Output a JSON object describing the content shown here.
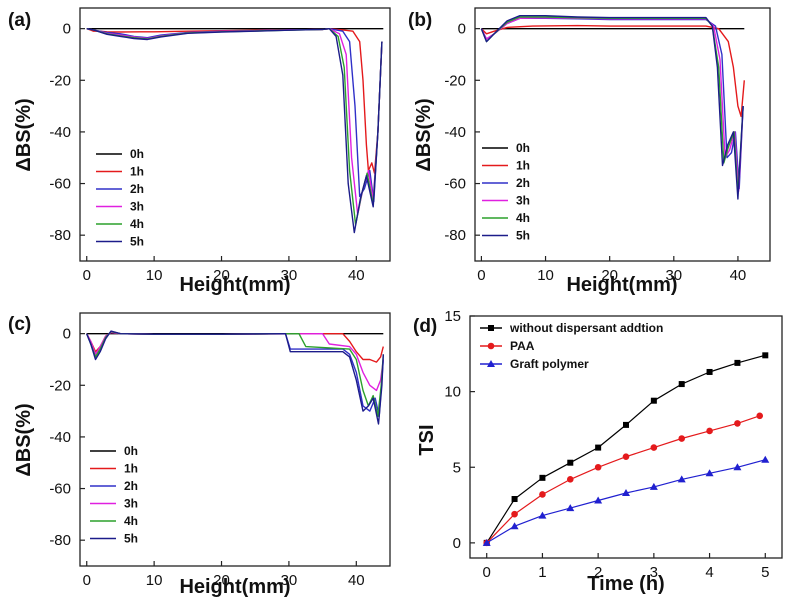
{
  "chart_data": [
    {
      "type": "line",
      "panel_label": "(a)",
      "xlabel": "Height(mm)",
      "ylabel": "ΔBS(%)",
      "xlim": [
        -1,
        45
      ],
      "ylim": [
        -90,
        8
      ],
      "xticks": [
        0,
        10,
        20,
        30,
        40
      ],
      "yticks": [
        0,
        -20,
        -40,
        -60,
        -80
      ],
      "legend_position": "lower-left",
      "series": [
        {
          "name": "0h",
          "color": "#000000",
          "x": [
            0,
            44
          ],
          "y": [
            0,
            0
          ]
        },
        {
          "name": "1h",
          "color": "#e41a1c",
          "x": [
            0,
            0.5,
            1,
            2,
            3,
            5,
            8,
            10,
            15,
            20,
            25,
            30,
            35,
            36,
            38,
            39.5,
            40.5,
            41,
            41.5,
            41.8,
            42.3,
            42.7,
            43.2,
            43.8
          ],
          "y": [
            0,
            -0.5,
            -1,
            -1,
            -1.2,
            -1.3,
            -1.2,
            -1.2,
            -1,
            -0.8,
            -0.6,
            -0.5,
            -0.3,
            0,
            -0.5,
            -1,
            -5,
            -20,
            -45,
            -55,
            -52,
            -56,
            -40,
            -5
          ]
        },
        {
          "name": "2h",
          "color": "#3030c8",
          "x": [
            0,
            1,
            3,
            5,
            7,
            9,
            11,
            15,
            20,
            25,
            30,
            35,
            36,
            38,
            39,
            39.8,
            40.5,
            41.2,
            42,
            42.6,
            43.2,
            43.8
          ],
          "y": [
            0,
            -0.5,
            -1.5,
            -2,
            -3,
            -3.5,
            -2.5,
            -1.5,
            -1,
            -0.8,
            -0.5,
            -0.3,
            0,
            -1,
            -5,
            -30,
            -65,
            -62,
            -55,
            -67,
            -40,
            -5
          ]
        },
        {
          "name": "3h",
          "color": "#e020e0",
          "x": [
            0,
            1,
            3,
            5,
            7,
            9,
            11,
            15,
            20,
            25,
            30,
            35,
            36,
            37.5,
            38.5,
            39.3,
            40.2,
            41,
            41.8,
            42.5,
            43.2,
            43.8
          ],
          "y": [
            0,
            -0.5,
            -1.8,
            -2.5,
            -3.2,
            -3.8,
            -2.8,
            -1.6,
            -1.1,
            -0.8,
            -0.5,
            -0.3,
            0,
            -2,
            -10,
            -50,
            -72,
            -62,
            -55,
            -66,
            -40,
            -5
          ]
        },
        {
          "name": "4h",
          "color": "#2ca02c",
          "x": [
            0,
            1,
            3,
            5,
            7,
            9,
            11,
            15,
            20,
            25,
            30,
            35,
            36,
            37.3,
            38.2,
            39,
            39.9,
            40.8,
            41.6,
            42.5,
            43.2,
            43.8
          ],
          "y": [
            0,
            -0.5,
            -2,
            -2.8,
            -3.5,
            -4,
            -3,
            -1.7,
            -1.2,
            -0.9,
            -0.6,
            -0.3,
            0,
            -3,
            -15,
            -55,
            -76,
            -64,
            -56,
            -68,
            -40,
            -5
          ]
        },
        {
          "name": "5h",
          "color": "#1c1c8a",
          "x": [
            0,
            1,
            3,
            5,
            7,
            9,
            11,
            15,
            20,
            25,
            30,
            35,
            36,
            37,
            38,
            38.8,
            39.7,
            40.6,
            41.5,
            42.5,
            43.2,
            43.8
          ],
          "y": [
            0,
            -0.5,
            -2.2,
            -3,
            -3.8,
            -4.2,
            -3.2,
            -1.8,
            -1.3,
            -1,
            -0.6,
            -0.3,
            0,
            -3,
            -18,
            -60,
            -79,
            -66,
            -57,
            -69,
            -40,
            -5
          ]
        }
      ]
    },
    {
      "type": "line",
      "panel_label": "(b)",
      "xlabel": "Height(mm)",
      "ylabel": "ΔBS(%)",
      "xlim": [
        -1,
        45
      ],
      "ylim": [
        -90,
        8
      ],
      "xticks": [
        0,
        10,
        20,
        30,
        40
      ],
      "yticks": [
        0,
        -20,
        -40,
        -60,
        -80
      ],
      "legend_position": "lower-left",
      "series": [
        {
          "name": "0h",
          "color": "#000000",
          "x": [
            0,
            41
          ],
          "y": [
            0,
            0
          ]
        },
        {
          "name": "1h",
          "color": "#e41a1c",
          "x": [
            0,
            0.8,
            2,
            4,
            8,
            15,
            20,
            25,
            30,
            35,
            37,
            38.5,
            39.3,
            40,
            40.5,
            41
          ],
          "y": [
            0,
            -2,
            -1,
            0.5,
            1,
            1.2,
            1,
            1,
            1,
            1,
            0,
            -5,
            -15,
            -30,
            -34,
            -20
          ]
        },
        {
          "name": "2h",
          "color": "#3030c8",
          "x": [
            0,
            0.8,
            2,
            4,
            6,
            10,
            15,
            20,
            25,
            30,
            35,
            36.5,
            37.5,
            38.3,
            39,
            39.6,
            40.2,
            40.8
          ],
          "y": [
            0,
            -4,
            -2,
            2,
            4,
            4,
            3.8,
            3.5,
            3.5,
            3.5,
            3.5,
            1,
            -10,
            -50,
            -48,
            -40,
            -62,
            -30
          ]
        },
        {
          "name": "3h",
          "color": "#e020e0",
          "x": [
            0,
            0.8,
            2,
            4,
            6,
            10,
            15,
            20,
            25,
            30,
            35,
            36.2,
            37.2,
            38,
            38.7,
            39.5,
            40.1,
            40.8
          ],
          "y": [
            0,
            -4,
            -2,
            2,
            4,
            4.2,
            4,
            3.8,
            3.8,
            3.8,
            3.8,
            1,
            -12,
            -50,
            -47,
            -40,
            -63,
            -30
          ]
        },
        {
          "name": "4h",
          "color": "#2ca02c",
          "x": [
            0,
            0.8,
            2,
            4,
            6,
            10,
            15,
            20,
            25,
            30,
            35,
            36,
            37,
            37.8,
            38.5,
            39.4,
            40,
            40.8
          ],
          "y": [
            0,
            -5,
            -2,
            2.5,
            4.5,
            4.5,
            4.2,
            4,
            4,
            4,
            4,
            1,
            -15,
            -52,
            -46,
            -40,
            -64,
            -30
          ]
        },
        {
          "name": "5h",
          "color": "#1c1c8a",
          "x": [
            0,
            0.8,
            2,
            4,
            6,
            10,
            15,
            20,
            25,
            30,
            35,
            36,
            36.8,
            37.6,
            38.4,
            39.3,
            40,
            40.8
          ],
          "y": [
            0,
            -5,
            -2,
            3,
            5,
            5,
            4.5,
            4.3,
            4.3,
            4.3,
            4.3,
            1,
            -15,
            -53,
            -45,
            -40,
            -66,
            -30
          ]
        }
      ]
    },
    {
      "type": "line",
      "panel_label": "(c)",
      "xlabel": "Height(mm)",
      "ylabel": "ΔBS(%)",
      "xlim": [
        -1,
        45
      ],
      "ylim": [
        -90,
        8
      ],
      "xticks": [
        0,
        10,
        20,
        30,
        40
      ],
      "yticks": [
        0,
        -20,
        -40,
        -60,
        -80
      ],
      "legend_position": "lower-left",
      "series": [
        {
          "name": "0h",
          "color": "#000000",
          "x": [
            0,
            44
          ],
          "y": [
            0,
            0
          ]
        },
        {
          "name": "1h",
          "color": "#e41a1c",
          "x": [
            0,
            0.6,
            1.3,
            2,
            2.8,
            3.6,
            5,
            10,
            20,
            30,
            38,
            39,
            40,
            41,
            42,
            43,
            43.6,
            44
          ],
          "y": [
            0,
            -3,
            -7,
            -5,
            -1,
            0.5,
            0,
            -0.2,
            -0.2,
            0,
            0,
            -3,
            -7,
            -10,
            -10,
            -11,
            -9,
            -5
          ]
        },
        {
          "name": "2h",
          "color": "#3030c8",
          "x": [
            0,
            0.6,
            1.3,
            2,
            2.8,
            3.6,
            5,
            10,
            20,
            29.5,
            30.2,
            38,
            39,
            40,
            41,
            42,
            42.8,
            43.4,
            44
          ],
          "y": [
            0,
            -4,
            -9,
            -6,
            -1.5,
            0.8,
            0,
            -0.2,
            -0.2,
            0,
            -6,
            -6,
            -8,
            -15,
            -28,
            -30,
            -25,
            -32,
            -10
          ]
        },
        {
          "name": "3h",
          "color": "#e020e0",
          "x": [
            0,
            0.6,
            1.3,
            2,
            2.8,
            3.6,
            5,
            10,
            20,
            35,
            36,
            39,
            40,
            41,
            42,
            43,
            43.6,
            44
          ],
          "y": [
            0,
            -3,
            -8,
            -5,
            -1,
            0.5,
            0,
            -0.2,
            -0.2,
            0,
            -4,
            -5,
            -8,
            -15,
            -20,
            -22,
            -18,
            -10
          ]
        },
        {
          "name": "4h",
          "color": "#2ca02c",
          "x": [
            0,
            0.6,
            1.3,
            2,
            2.8,
            3.6,
            5,
            10,
            20,
            31.5,
            32.5,
            39,
            40,
            41,
            41.8,
            42.5,
            43.2,
            43.7,
            44
          ],
          "y": [
            0,
            -4,
            -9,
            -6,
            -1.5,
            0.8,
            0,
            -0.2,
            -0.2,
            0,
            -5,
            -6,
            -10,
            -22,
            -28,
            -24,
            -32,
            -20,
            -8
          ]
        },
        {
          "name": "5h",
          "color": "#1c1c8a",
          "x": [
            0,
            0.6,
            1.3,
            2,
            2.8,
            3.6,
            5,
            10,
            20,
            29.5,
            30.2,
            38,
            39,
            40,
            41,
            41.8,
            42.5,
            43.3,
            43.8,
            44
          ],
          "y": [
            0,
            -4,
            -10,
            -7,
            -2,
            1,
            0,
            -0.2,
            -0.2,
            0,
            -7,
            -7,
            -9,
            -18,
            -30,
            -28,
            -25,
            -35,
            -20,
            -8
          ]
        }
      ]
    },
    {
      "type": "scatter",
      "panel_label": "(d)",
      "xlabel": "Time (h)",
      "ylabel": "TSI",
      "xlim": [
        -0.3,
        5.3
      ],
      "ylim": [
        -1,
        15
      ],
      "xticks": [
        0,
        1,
        2,
        3,
        4,
        5
      ],
      "yticks": [
        0,
        5,
        10,
        15
      ],
      "legend_position": "top-left",
      "series": [
        {
          "name": "without dispersant addtion",
          "color": "#000000",
          "marker": "square",
          "x": [
            0,
            0.5,
            1,
            1.5,
            2,
            2.5,
            3,
            3.5,
            4,
            4.5,
            5
          ],
          "y": [
            0,
            2.9,
            4.3,
            5.3,
            6.3,
            7.8,
            9.4,
            10.5,
            11.3,
            11.9,
            12.4
          ]
        },
        {
          "name": "PAA",
          "color": "#e41a1c",
          "marker": "circle",
          "x": [
            0,
            0.5,
            1,
            1.5,
            2,
            2.5,
            3,
            3.5,
            4,
            4.5,
            4.9
          ],
          "y": [
            0,
            1.9,
            3.2,
            4.2,
            5.0,
            5.7,
            6.3,
            6.9,
            7.4,
            7.9,
            8.4
          ]
        },
        {
          "name": "Graft polymer",
          "color": "#2020d0",
          "marker": "triangle",
          "x": [
            0,
            0.5,
            1,
            1.5,
            2,
            2.5,
            3,
            3.5,
            4,
            4.5,
            5
          ],
          "y": [
            0,
            1.1,
            1.8,
            2.3,
            2.8,
            3.3,
            3.7,
            4.2,
            4.6,
            5.0,
            5.5
          ]
        }
      ]
    }
  ]
}
